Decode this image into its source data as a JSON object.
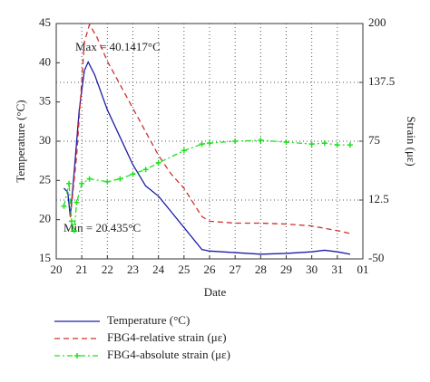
{
  "chart_data": {
    "type": "line",
    "xlabel": "Date",
    "ylabel": "Temperature (°C)",
    "y2label": "Strain (με)",
    "annotations": [
      "Max = 40.1417°C",
      "Min = 20.435°C"
    ],
    "xlim": [
      20,
      32
    ],
    "xticks": [
      20,
      21,
      22,
      23,
      24,
      25,
      26,
      27,
      28,
      29,
      30,
      31,
      {
        "value": 32,
        "label": "01"
      }
    ],
    "ylim": [
      15,
      45
    ],
    "yticks": [
      15,
      20,
      25,
      30,
      35,
      40,
      45
    ],
    "y2lim": [
      -50,
      200
    ],
    "y2ticks": [
      -50,
      12.5,
      75,
      137.5,
      200
    ],
    "grid": true,
    "series": [
      {
        "name": "Temperature (°C)",
        "color": "#1c1ca8",
        "x": [
          20.3,
          20.45,
          20.55,
          20.7,
          20.9,
          21.1,
          21.25,
          21.5,
          22,
          22.5,
          23,
          23.5,
          24,
          24.5,
          25,
          25.7,
          26,
          27,
          28,
          29,
          30,
          30.5,
          31,
          31.5
        ],
        "values": [
          24,
          23.5,
          20.4,
          26,
          34,
          39,
          40.1,
          38.5,
          34,
          30.5,
          27,
          24.3,
          23,
          21,
          19,
          16.2,
          16,
          15.8,
          15.6,
          15.7,
          15.9,
          16.1,
          15.9,
          15.6
        ]
      },
      {
        "name": "FBG4-relative strain (με)",
        "color": "#d03030",
        "axis": "y2",
        "x": [
          20.55,
          20.8,
          21.1,
          21.3,
          21.6,
          22,
          22.5,
          23,
          23.5,
          24,
          24.5,
          25,
          25.7,
          26,
          27,
          28,
          29,
          30,
          31,
          31.5
        ],
        "values": [
          -6,
          60,
          180,
          199,
          185,
          160,
          135,
          110,
          85,
          60,
          40,
          25,
          -5,
          -10,
          -12,
          -12,
          -13,
          -15,
          -20,
          -23
        ]
      },
      {
        "name": "FBG4-absolute strain (με)",
        "color": "#22e022",
        "axis": "y2",
        "x": [
          20.3,
          20.5,
          20.6,
          20.7,
          20.8,
          21,
          21.3,
          22,
          22.5,
          23,
          23.5,
          24,
          25,
          25.7,
          26,
          27,
          28,
          29,
          30,
          30.5,
          31,
          31.5
        ],
        "values": [
          6,
          30,
          -10,
          -20,
          10,
          30,
          35,
          32,
          35,
          40,
          45,
          52,
          65,
          72,
          73,
          75,
          76,
          74,
          72,
          73,
          71,
          71
        ]
      }
    ]
  }
}
